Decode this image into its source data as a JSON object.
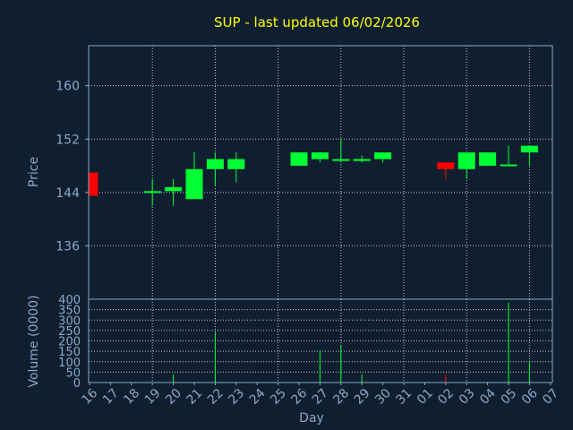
{
  "chart_data": {
    "type": "candlestick",
    "title": "SUP - last updated 06/02/2026",
    "colors": {
      "background": "#0f1f30",
      "text": "#8aa8c8",
      "title": "#ffff00",
      "up": "#00ff33",
      "down": "#ff0000",
      "grid": "#ffffff",
      "frame": "#8aa8c8"
    },
    "price": {
      "ylabel": "Price",
      "ylim": [
        128,
        166
      ],
      "yticks": [
        136,
        144,
        152,
        160
      ]
    },
    "volume": {
      "ylabel": "Volume (0000)",
      "ylim": [
        0,
        400
      ],
      "yticks": [
        0,
        50,
        100,
        150,
        200,
        250,
        300,
        350,
        400
      ]
    },
    "xlabel": "Day",
    "x_ticks": [
      "16",
      "17",
      "18",
      "19",
      "20",
      "21",
      "22",
      "23",
      "24",
      "25",
      "26",
      "27",
      "28",
      "29",
      "30",
      "31",
      "01",
      "02",
      "03",
      "04",
      "05",
      "06",
      "07"
    ],
    "candles": [
      {
        "slot": 0,
        "open": 147.0,
        "close": 143.5,
        "high": 147.0,
        "low": 143.5,
        "volume": 0
      },
      {
        "slot": 3,
        "open": 144.0,
        "close": 144.2,
        "high": 146.0,
        "low": 142.0,
        "volume": 0
      },
      {
        "slot": 4,
        "open": 144.2,
        "close": 144.8,
        "high": 146.0,
        "low": 142.0,
        "volume": 40
      },
      {
        "slot": 5,
        "open": 143.0,
        "close": 147.5,
        "high": 150.0,
        "low": 143.0,
        "volume": 0
      },
      {
        "slot": 6,
        "open": 147.5,
        "close": 149.0,
        "high": 150.0,
        "low": 145.0,
        "volume": 240
      },
      {
        "slot": 7,
        "open": 147.5,
        "close": 149.0,
        "high": 150.0,
        "low": 145.5,
        "volume": 0
      },
      {
        "slot": 10,
        "open": 148.0,
        "close": 150.0,
        "high": 150.0,
        "low": 148.0,
        "volume": 0
      },
      {
        "slot": 11,
        "open": 149.0,
        "close": 150.0,
        "high": 150.0,
        "low": 148.5,
        "volume": 155
      },
      {
        "slot": 12,
        "open": 149.0,
        "close": 149.0,
        "high": 152.0,
        "low": 148.5,
        "volume": 180
      },
      {
        "slot": 13,
        "open": 149.0,
        "close": 149.0,
        "high": 149.5,
        "low": 148.5,
        "volume": 40
      },
      {
        "slot": 14,
        "open": 149.0,
        "close": 150.0,
        "high": 150.0,
        "low": 148.5,
        "volume": 0
      },
      {
        "slot": 17,
        "open": 148.5,
        "close": 147.5,
        "high": 148.5,
        "low": 146.0,
        "volume": 40
      },
      {
        "slot": 18,
        "open": 147.5,
        "close": 150.0,
        "high": 150.0,
        "low": 146.0,
        "volume": 0
      },
      {
        "slot": 19,
        "open": 148.0,
        "close": 150.0,
        "high": 150.0,
        "low": 148.0,
        "volume": 0
      },
      {
        "slot": 20,
        "open": 148.0,
        "close": 148.2,
        "high": 151.0,
        "low": 148.0,
        "volume": 385
      },
      {
        "slot": 21,
        "open": 150.0,
        "close": 151.0,
        "high": 151.0,
        "low": 148.0,
        "volume": 100
      }
    ]
  }
}
